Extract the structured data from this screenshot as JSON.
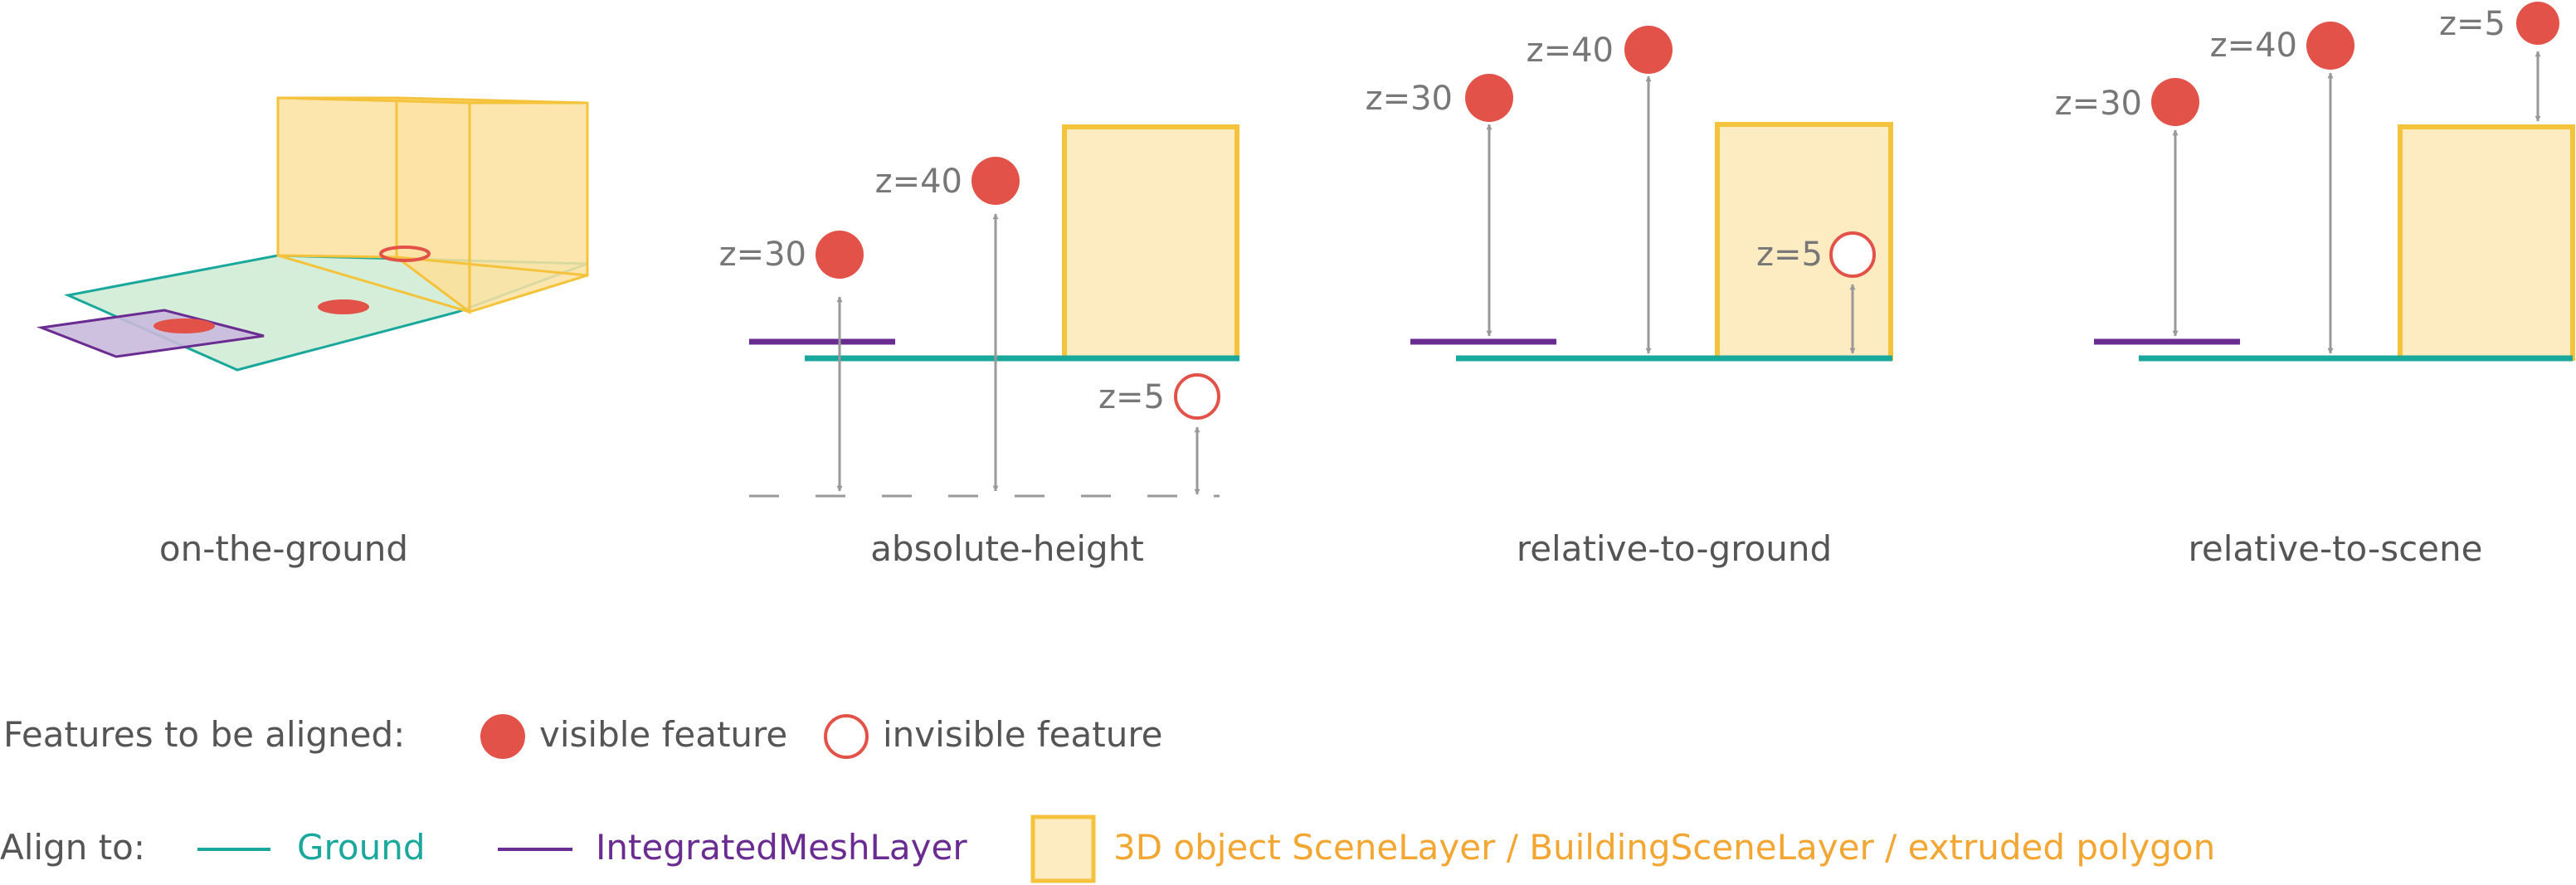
{
  "colors": {
    "ground": "#1aa79c",
    "mesh": "#6b2c91",
    "building_stroke": "#f5c33b",
    "building_fill": "#fdebc1",
    "feature": "#e35248",
    "arrow": "#999999",
    "text": "#666666",
    "scene_text": "#f3a632"
  },
  "panels": [
    {
      "id": "on-the-ground",
      "caption": "on-the-ground"
    },
    {
      "id": "absolute-height",
      "caption": "absolute-height",
      "labels": {
        "z30": "z=30",
        "z40": "z=40",
        "z5": "z=5"
      }
    },
    {
      "id": "relative-to-ground",
      "caption": "relative-to-ground",
      "labels": {
        "z30": "z=30",
        "z40": "z=40",
        "z5": "z=5"
      }
    },
    {
      "id": "relative-to-scene",
      "caption": "relative-to-scene",
      "labels": {
        "z30": "z=30",
        "z40": "z=40",
        "z5": "z=5"
      }
    }
  ],
  "legend": {
    "features_title": "Features to be aligned:",
    "visible": "visible feature",
    "invisible": "invisible feature",
    "align_title": "Align to:",
    "ground": "Ground",
    "mesh": "IntegratedMeshLayer",
    "scene": "3D object SceneLayer / BuildingSceneLayer / extruded polygon"
  }
}
